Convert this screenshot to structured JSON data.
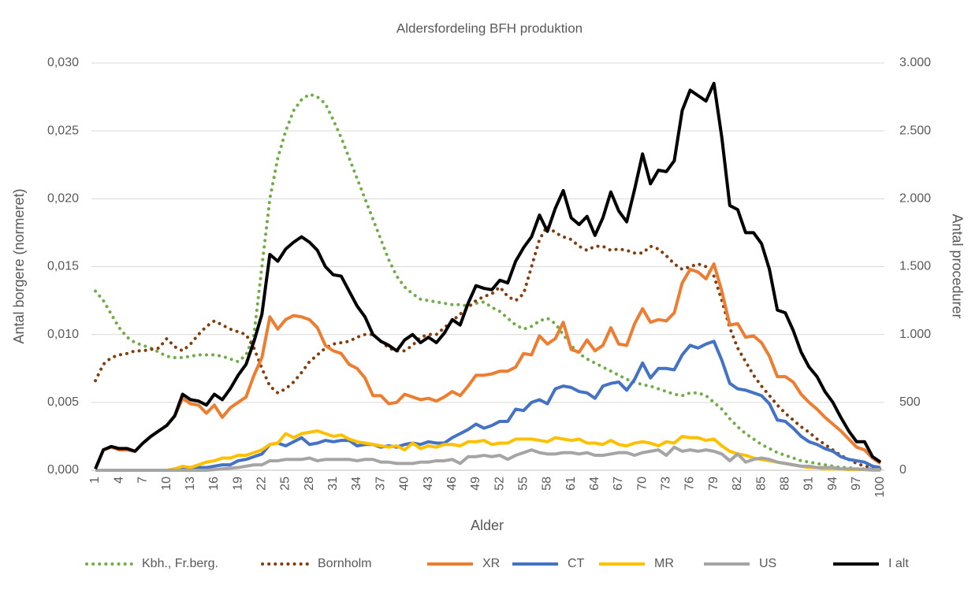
{
  "chart_data": {
    "type": "line",
    "title": "Aldersfordeling BFH produktion",
    "x_label": "Alder",
    "y_label": "Antal borgere (normeret)",
    "y2_label": "Antal procedurer",
    "categories": [
      "1",
      null,
      null,
      "4",
      null,
      null,
      "7",
      null,
      null,
      "10",
      null,
      null,
      "13",
      null,
      null,
      "16",
      null,
      null,
      "19",
      null,
      null,
      "22",
      null,
      null,
      "25",
      null,
      null,
      "28",
      null,
      null,
      "31",
      null,
      null,
      "34",
      null,
      null,
      "37",
      null,
      null,
      "40",
      null,
      null,
      "43",
      null,
      null,
      "46",
      null,
      null,
      "49",
      null,
      null,
      "52",
      null,
      null,
      "55",
      null,
      null,
      "58",
      null,
      null,
      "61",
      null,
      null,
      "64",
      null,
      null,
      "67",
      null,
      null,
      "70",
      null,
      null,
      "73",
      null,
      null,
      "76",
      null,
      null,
      "79",
      null,
      null,
      "82",
      null,
      null,
      "85",
      null,
      null,
      "88",
      null,
      null,
      "91",
      null,
      null,
      "94",
      null,
      null,
      "97",
      null,
      null,
      "100"
    ],
    "ylim": [
      0,
      0.03
    ],
    "yticks": [
      {
        "value": 0,
        "label": "0,000"
      },
      {
        "value": 0.005,
        "label": "0,005"
      },
      {
        "value": 0.01,
        "label": "0,010"
      },
      {
        "value": 0.015,
        "label": "0,015"
      },
      {
        "value": 0.02,
        "label": "0,020"
      },
      {
        "value": 0.025,
        "label": "0,025"
      },
      {
        "value": 0.03,
        "label": "0,030"
      }
    ],
    "y2lim": [
      0,
      3000
    ],
    "y2ticks": [
      0,
      500,
      {
        "value": 1000,
        "label": "1.000"
      },
      {
        "value": 1500,
        "label": "1.500"
      },
      {
        "value": 2000,
        "label": "2.000"
      },
      {
        "value": 2500,
        "label": "2.500"
      },
      {
        "value": 3000,
        "label": "3.000"
      }
    ],
    "grid": true,
    "legend": "bottom",
    "series": [
      {
        "name": "Kbh., Fr.berg.",
        "color": "#70ad47",
        "line_style": "dotted",
        "axis": "y",
        "values": [
          0.0132,
          0.0125,
          0.0115,
          0.0105,
          0.0098,
          0.0094,
          0.0092,
          0.009,
          0.0087,
          0.0084,
          0.0083,
          0.0083,
          0.0084,
          0.0085,
          0.0085,
          0.0085,
          0.0084,
          0.0082,
          0.008,
          0.0085,
          0.01,
          0.015,
          0.02,
          0.023,
          0.025,
          0.0265,
          0.0273,
          0.0277,
          0.0275,
          0.027,
          0.0258,
          0.0245,
          0.023,
          0.0215,
          0.02,
          0.0185,
          0.017,
          0.0155,
          0.0143,
          0.0135,
          0.013,
          0.0126,
          0.0125,
          0.0124,
          0.0123,
          0.0122,
          0.0122,
          0.0121,
          0.0123,
          0.0124,
          0.012,
          0.0117,
          0.0112,
          0.0107,
          0.0104,
          0.0106,
          0.011,
          0.0112,
          0.0108,
          0.01,
          0.0092,
          0.0086,
          0.0082,
          0.0079,
          0.0076,
          0.0073,
          0.007,
          0.0067,
          0.0065,
          0.0063,
          0.0062,
          0.006,
          0.0058,
          0.0056,
          0.0055,
          0.0057,
          0.0057,
          0.0055,
          0.005,
          0.0045,
          0.0038,
          0.0032,
          0.0027,
          0.0023,
          0.0019,
          0.0016,
          0.0013,
          0.0011,
          0.0009,
          0.0007,
          0.0006,
          0.0005,
          0.0004,
          0.0003,
          0.0002,
          0.0002,
          0.0001,
          0.0001,
          0.0001,
          0.0
        ]
      },
      {
        "name": "Bornholm",
        "color": "#843c0c",
        "line_style": "dotted",
        "axis": "y",
        "values": [
          0.0066,
          0.0078,
          0.0083,
          0.0085,
          0.0086,
          0.0088,
          0.0088,
          0.0089,
          0.009,
          0.0097,
          0.0091,
          0.0088,
          0.0093,
          0.01,
          0.0106,
          0.011,
          0.0107,
          0.0104,
          0.0102,
          0.01,
          0.009,
          0.0075,
          0.0062,
          0.0057,
          0.006,
          0.0065,
          0.0072,
          0.008,
          0.0085,
          0.009,
          0.0093,
          0.0094,
          0.0095,
          0.0098,
          0.01,
          0.01,
          0.0095,
          0.009,
          0.0088,
          0.0088,
          0.0092,
          0.0098,
          0.01,
          0.01,
          0.0105,
          0.011,
          0.0115,
          0.012,
          0.0125,
          0.0128,
          0.013,
          0.0135,
          0.0128,
          0.0125,
          0.013,
          0.015,
          0.017,
          0.018,
          0.0175,
          0.0172,
          0.017,
          0.0165,
          0.0162,
          0.0165,
          0.0165,
          0.0162,
          0.0163,
          0.0162,
          0.016,
          0.016,
          0.0165,
          0.0163,
          0.0158,
          0.0152,
          0.0148,
          0.015,
          0.0152,
          0.015,
          0.0143,
          0.0125,
          0.0105,
          0.009,
          0.008,
          0.007,
          0.0062,
          0.0055,
          0.0048,
          0.0042,
          0.0037,
          0.0032,
          0.0028,
          0.0023,
          0.0019,
          0.0015,
          0.0011,
          0.0008,
          0.0005,
          0.0003,
          0.0002,
          0.0001
        ]
      },
      {
        "name": "XR",
        "color": "#ed7d31",
        "line_style": "solid",
        "axis": "y2",
        "values": [
          10,
          150,
          170,
          150,
          150,
          140,
          200,
          250,
          290,
          330,
          400,
          530,
          490,
          480,
          420,
          480,
          390,
          460,
          500,
          540,
          700,
          830,
          1130,
          1040,
          1110,
          1140,
          1130,
          1110,
          1050,
          920,
          880,
          860,
          780,
          750,
          680,
          550,
          550,
          490,
          500,
          560,
          540,
          520,
          530,
          510,
          540,
          580,
          550,
          620,
          700,
          700,
          710,
          730,
          730,
          760,
          860,
          850,
          990,
          930,
          970,
          1090,
          890,
          870,
          960,
          880,
          920,
          1050,
          930,
          920,
          1080,
          1190,
          1090,
          1110,
          1100,
          1160,
          1380,
          1480,
          1460,
          1410,
          1520,
          1320,
          1070,
          1080,
          980,
          990,
          940,
          840,
          690,
          690,
          650,
          560,
          500,
          450,
          390,
          340,
          290,
          230,
          170,
          150,
          90,
          50
        ]
      },
      {
        "name": "CT",
        "color": "#4472c4",
        "line_style": "solid",
        "axis": "y2",
        "values": [
          0,
          0,
          0,
          0,
          0,
          0,
          0,
          0,
          0,
          0,
          5,
          10,
          10,
          20,
          20,
          30,
          40,
          40,
          70,
          80,
          100,
          120,
          190,
          200,
          180,
          210,
          240,
          190,
          200,
          220,
          210,
          220,
          220,
          180,
          190,
          190,
          170,
          180,
          170,
          190,
          200,
          190,
          210,
          200,
          200,
          240,
          270,
          300,
          340,
          310,
          330,
          360,
          360,
          450,
          440,
          500,
          520,
          490,
          600,
          620,
          610,
          580,
          570,
          530,
          620,
          640,
          650,
          590,
          670,
          790,
          680,
          750,
          750,
          740,
          850,
          920,
          900,
          930,
          950,
          810,
          640,
          600,
          590,
          570,
          550,
          490,
          370,
          360,
          310,
          250,
          210,
          190,
          160,
          140,
          100,
          80,
          70,
          60,
          30,
          20
        ]
      },
      {
        "name": "MR",
        "color": "#ffc000",
        "line_style": "solid",
        "axis": "y2",
        "values": [
          0,
          0,
          0,
          0,
          0,
          0,
          0,
          0,
          0,
          0,
          10,
          30,
          20,
          40,
          60,
          70,
          90,
          90,
          110,
          110,
          130,
          150,
          190,
          200,
          270,
          240,
          270,
          280,
          290,
          270,
          250,
          260,
          230,
          210,
          200,
          190,
          180,
          170,
          180,
          150,
          200,
          160,
          180,
          170,
          190,
          190,
          180,
          210,
          210,
          220,
          190,
          200,
          200,
          230,
          230,
          230,
          220,
          210,
          240,
          230,
          220,
          230,
          200,
          200,
          190,
          220,
          190,
          180,
          200,
          210,
          200,
          180,
          210,
          200,
          250,
          240,
          240,
          220,
          230,
          180,
          140,
          120,
          110,
          90,
          80,
          70,
          60,
          50,
          40,
          30,
          20,
          20,
          10,
          10,
          10,
          5,
          5,
          5,
          0,
          0
        ]
      },
      {
        "name": "US",
        "color": "#a5a5a5",
        "line_style": "solid",
        "axis": "y2",
        "values": [
          0,
          0,
          0,
          0,
          0,
          0,
          0,
          0,
          0,
          0,
          0,
          0,
          0,
          0,
          0,
          5,
          10,
          15,
          20,
          30,
          40,
          40,
          70,
          70,
          80,
          80,
          80,
          90,
          70,
          80,
          80,
          80,
          80,
          70,
          80,
          80,
          60,
          60,
          50,
          50,
          50,
          60,
          60,
          70,
          70,
          80,
          50,
          100,
          100,
          110,
          100,
          110,
          80,
          110,
          130,
          150,
          130,
          120,
          120,
          130,
          130,
          120,
          130,
          110,
          110,
          120,
          130,
          130,
          110,
          130,
          140,
          150,
          110,
          170,
          140,
          150,
          140,
          150,
          140,
          120,
          70,
          120,
          60,
          80,
          90,
          80,
          60,
          50,
          40,
          30,
          30,
          20,
          20,
          20,
          10,
          10,
          10,
          5,
          5,
          5
        ]
      },
      {
        "name": "I alt",
        "color": "#000000",
        "line_style": "solid",
        "axis": "y2",
        "values": [
          10,
          150,
          175,
          160,
          160,
          140,
          200,
          250,
          290,
          330,
          400,
          560,
          520,
          510,
          480,
          560,
          520,
          600,
          700,
          780,
          950,
          1150,
          1590,
          1540,
          1630,
          1680,
          1720,
          1680,
          1620,
          1500,
          1440,
          1430,
          1320,
          1210,
          1130,
          1000,
          950,
          920,
          880,
          960,
          1000,
          940,
          980,
          940,
          1010,
          1110,
          1070,
          1230,
          1360,
          1340,
          1330,
          1400,
          1380,
          1540,
          1640,
          1720,
          1880,
          1760,
          1930,
          2060,
          1860,
          1810,
          1870,
          1730,
          1860,
          2050,
          1910,
          1830,
          2070,
          2330,
          2110,
          2210,
          2200,
          2280,
          2650,
          2800,
          2760,
          2720,
          2850,
          2450,
          1950,
          1920,
          1750,
          1750,
          1670,
          1480,
          1180,
          1160,
          1030,
          870,
          760,
          690,
          580,
          500,
          390,
          290,
          210,
          210,
          100,
          60
        ]
      }
    ]
  }
}
